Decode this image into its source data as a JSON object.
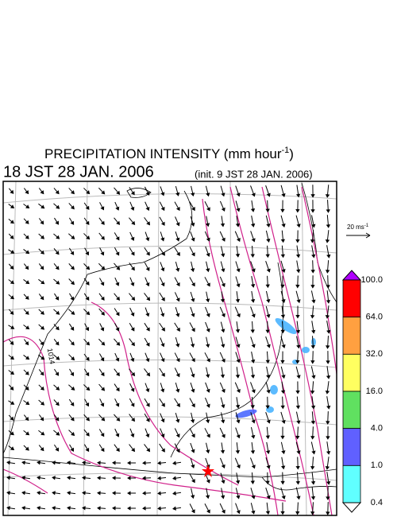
{
  "header": {
    "title": "PRECIPITATION INTENSITY (mm hour",
    "title_exponent": "-1",
    "title_close": ")",
    "valid_time": "18 JST 28 JAN. 2006",
    "init_time": "(init. 9 JST 28 JAN. 2006)"
  },
  "map": {
    "isobar_label": "1014"
  },
  "reference_vector": {
    "label": "20 ms",
    "exponent": "-1"
  },
  "colorbar": {
    "levels": [
      "100.0",
      "64.0",
      "32.0",
      "16.0",
      "4.0",
      "1.0",
      "0.4"
    ],
    "colors": [
      "#ff0000",
      "#ffa040",
      "#ffff60",
      "#60e060",
      "#6060ff",
      "#60ffff"
    ],
    "over_color": "#b000ff",
    "under_color": "#ffffff"
  }
}
